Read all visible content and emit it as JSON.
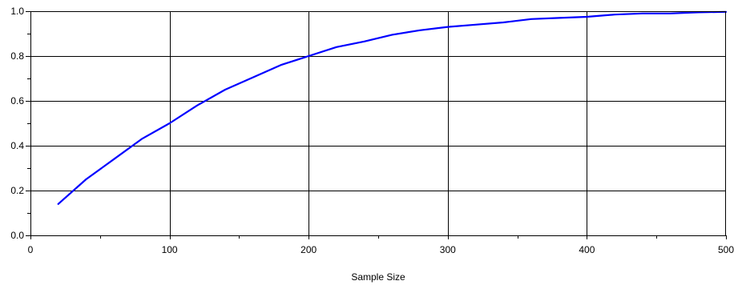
{
  "chart_data": {
    "type": "line",
    "title": "",
    "xlabel": "Sample Size",
    "ylabel": "",
    "xlim": [
      0,
      500
    ],
    "ylim": [
      0,
      1.0
    ],
    "x_ticks": [
      0,
      100,
      200,
      300,
      400,
      500
    ],
    "x_tick_labels": [
      "0",
      "100",
      "200",
      "300",
      "400",
      "500"
    ],
    "y_ticks": [
      0,
      0.2,
      0.4,
      0.6,
      0.8,
      1.0
    ],
    "y_tick_labels": [
      "0.0",
      "0.2",
      "0.4",
      "0.6",
      "0.8",
      "1.0"
    ],
    "grid": true,
    "legend": "none",
    "series": [
      {
        "color": "#0000ff",
        "points": [
          [
            20,
            0.14
          ],
          [
            40,
            0.25
          ],
          [
            60,
            0.34
          ],
          [
            80,
            0.43
          ],
          [
            100,
            0.5
          ],
          [
            120,
            0.58
          ],
          [
            140,
            0.65
          ],
          [
            160,
            0.705
          ],
          [
            180,
            0.76
          ],
          [
            200,
            0.8
          ],
          [
            220,
            0.84
          ],
          [
            240,
            0.865
          ],
          [
            260,
            0.895
          ],
          [
            280,
            0.915
          ],
          [
            300,
            0.93
          ],
          [
            320,
            0.94
          ],
          [
            340,
            0.95
          ],
          [
            360,
            0.965
          ],
          [
            380,
            0.97
          ],
          [
            400,
            0.975
          ],
          [
            420,
            0.985
          ],
          [
            440,
            0.99
          ],
          [
            460,
            0.99
          ],
          [
            480,
            0.995
          ],
          [
            500,
            0.997
          ]
        ]
      }
    ]
  }
}
